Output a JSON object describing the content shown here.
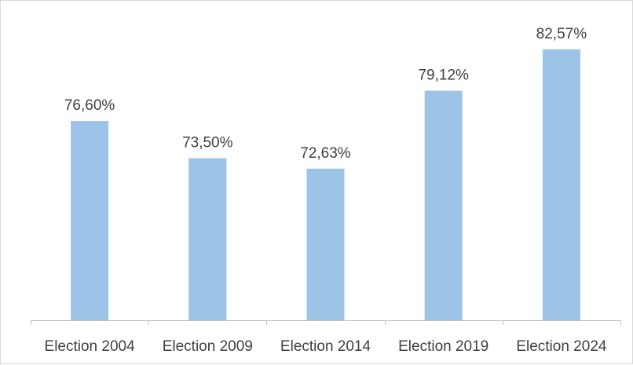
{
  "chart_data": {
    "type": "bar",
    "categories": [
      "Election 2004",
      "Election 2009",
      "Election 2014",
      "Election 2019",
      "Election 2024"
    ],
    "values": [
      76.6,
      73.5,
      72.63,
      79.12,
      82.57
    ],
    "data_labels": [
      "76,60%",
      "73,50%",
      "72,63%",
      "79,12%",
      "82,57%"
    ],
    "title": "",
    "xlabel": "",
    "ylabel": "",
    "ylim": [
      60,
      84
    ],
    "grid": false,
    "legend": "none",
    "colors": {
      "bar": "#9dc3e6",
      "axis": "#bfbfbf",
      "text": "#404040"
    }
  }
}
